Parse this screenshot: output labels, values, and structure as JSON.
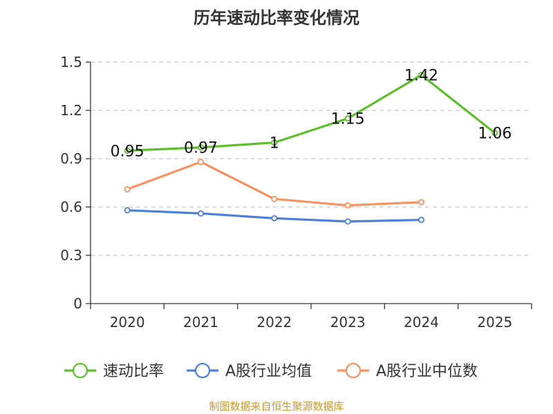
{
  "chart_data": {
    "type": "line",
    "title": "历年速动比率变化情况",
    "categories": [
      "2020",
      "2021",
      "2022",
      "2023",
      "2024",
      "2025"
    ],
    "ylim": [
      0,
      1.5
    ],
    "yticks": [
      "0",
      "0.3",
      "0.6",
      "0.9",
      "1.2",
      "1.5"
    ],
    "series": [
      {
        "name": "速动比率",
        "color": "#5cbf2a",
        "values": [
          0.95,
          0.97,
          1.0,
          1.15,
          1.42,
          1.06
        ],
        "labels": [
          "0.95",
          "0.97",
          "1",
          "1.15",
          "1.42",
          "1.06"
        ],
        "show_labels": true
      },
      {
        "name": "A股行业均值",
        "color": "#4a7fdb",
        "values": [
          0.58,
          0.56,
          0.53,
          0.51,
          0.52,
          null
        ],
        "show_labels": false
      },
      {
        "name": "A股行业中位数",
        "color": "#f7915e",
        "values": [
          0.71,
          0.88,
          0.65,
          0.61,
          0.63,
          null
        ],
        "show_labels": false
      }
    ],
    "grid": true,
    "legend_position": "bottom"
  },
  "source": "制图数据来自恒生聚源数据库"
}
